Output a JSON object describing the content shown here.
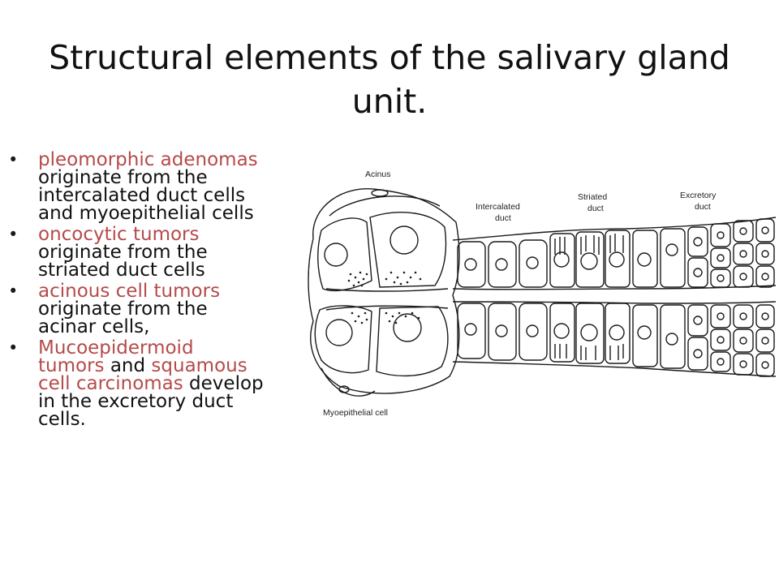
{
  "title": "Structural elements of the salivary gland unit.",
  "bullets": [
    {
      "highlight": "pleomorphic adenomas",
      "lines": [
        "originate from the",
        "intercalated duct cells",
        "and myoepithelial cells"
      ]
    },
    {
      "highlight": "oncocytic tumors",
      "lines": [
        "originate from the",
        "striated duct cells"
      ]
    },
    {
      "highlight": "acinous cell tumors",
      "lines": [
        "originate from the",
        "acinar cells,"
      ]
    },
    {
      "line1": "Mucoepidermoid",
      "line2_red": "tumors",
      "line2_black": " and ",
      "line2_red2": "squamous",
      "line3_red": "cell carcinomas",
      "line3_black": " develop",
      "lines": [
        "in the excretory duct",
        "cells."
      ]
    }
  ],
  "figure": {
    "labels": {
      "acinus": "Acinus",
      "intercalated_1": "Intercalated",
      "intercalated_2": "duct",
      "striated_1": "Striated",
      "striated_2": "duct",
      "excretory_1": "Excretory",
      "excretory_2": "duct",
      "myoepithelial": "Myoepithelial cell"
    }
  },
  "colors": {
    "highlight": "#b64a4a",
    "text": "#111111",
    "line_art": "#1a1a1a"
  }
}
